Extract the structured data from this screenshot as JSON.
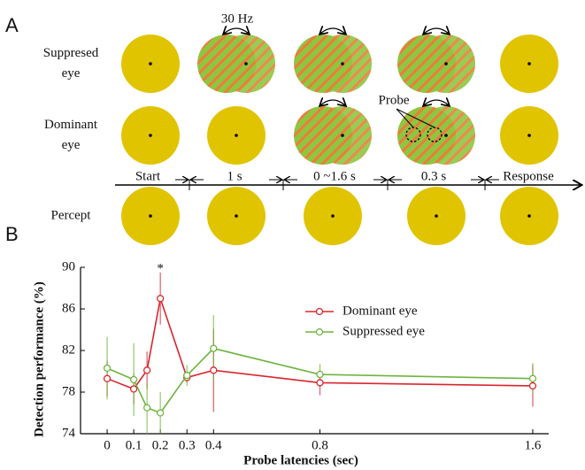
{
  "panel_a": {
    "label": "A",
    "rows": [
      [
        "Suppresed",
        "eye"
      ],
      [
        "Dominant",
        "eye"
      ],
      [
        "Percept"
      ]
    ],
    "frequency": "30 Hz",
    "probe": "Probe",
    "timeline": [
      "Start",
      "1 s",
      "0 ~1.6 s",
      "0.3 s",
      "Response"
    ]
  },
  "chart_data": {
    "type": "line",
    "label": "B",
    "xlabel": "Probe latencies (sec)",
    "ylabel": "Detection performance (%)",
    "x": [
      0,
      0.1,
      0.15,
      0.2,
      0.3,
      0.4,
      0.8,
      1.6
    ],
    "series": [
      {
        "name": "Dominant eye",
        "color": "#d7262e",
        "values": [
          79.3,
          78.3,
          80.1,
          87.0,
          79.4,
          80.1,
          78.9,
          78.6
        ],
        "errors": [
          1.7,
          1.5,
          1.8,
          2.5,
          0.5,
          4.0,
          1.2,
          2.0
        ]
      },
      {
        "name": "Suppressed eye",
        "color": "#6fb43f",
        "values": [
          80.3,
          79.2,
          76.5,
          76.0,
          79.6,
          82.2,
          79.7,
          79.3
        ],
        "errors": [
          3.0,
          3.5,
          2.5,
          2.0,
          1.0,
          3.2,
          1.0,
          1.5
        ]
      }
    ],
    "annotations": [
      {
        "text": "*",
        "x": 0.2
      }
    ],
    "xlim": [
      -0.1,
      1.66
    ],
    "ylim": [
      74,
      90
    ],
    "xticks": [
      0,
      0.1,
      0.2,
      0.3,
      0.4,
      0.8,
      1.6
    ],
    "yticks": [
      74,
      78,
      82,
      86,
      90
    ],
    "legend": "upper right"
  }
}
